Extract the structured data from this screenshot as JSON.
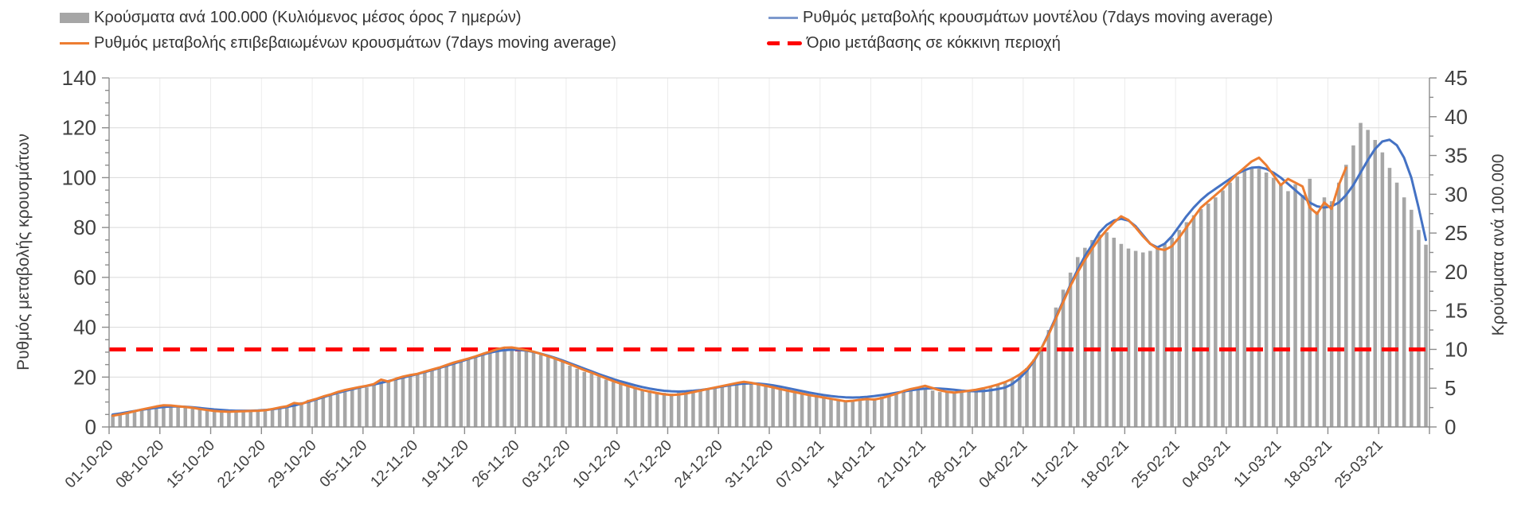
{
  "legend": {
    "bars_label": "Κρούσματα ανά 100.000 (Κυλιόμενος μέσος όρος 7 ημερών)",
    "confirmed_label": "Ρυθμός μεταβολής επιβεβαιωμένων κρουσμάτων (7days moving average)",
    "model_label": "Ρυθμός μεταβολής κρουσμάτων μοντέλου (7days moving average)",
    "threshold_label": "Όριο μετάβασης σε κόκκινη περιοχή"
  },
  "axes": {
    "left_title": "Ρυθμός μεταβολής κρουσμάτων",
    "right_title": "Κρούσματα ανά 100.000",
    "left_ticks": [
      0,
      20,
      40,
      60,
      80,
      100,
      120,
      140
    ],
    "right_ticks": [
      0,
      5,
      10,
      15,
      20,
      25,
      30,
      35,
      40,
      45
    ],
    "left_range": [
      0,
      140
    ],
    "right_range": [
      0,
      45
    ]
  },
  "colors": {
    "bars": "#a6a6a6",
    "model": "#4472c4",
    "confirmed": "#ed7d31",
    "threshold": "#fe0000",
    "grid_h": "#d9d9d9",
    "grid_v": "#ececec",
    "axis": "#8c8c8c",
    "text": "#404040"
  },
  "chart_data": {
    "type": "bar",
    "subtype": "daily bars with two 7-day moving-average lines and a horizontal threshold line",
    "start_date": "01-10-20",
    "end_date": "31-03-21",
    "grid": true,
    "legend_position": "top",
    "x_tick_labels": [
      "01-10-20",
      "08-10-20",
      "15-10-20",
      "22-10-20",
      "29-10-20",
      "05-11-20",
      "12-11-20",
      "19-11-20",
      "26-11-20",
      "03-12-20",
      "10-12-20",
      "17-12-20",
      "24-12-20",
      "31-12-20",
      "07-01-21",
      "14-01-21",
      "21-01-21",
      "28-01-21",
      "04-02-21",
      "11-02-21",
      "18-02-21",
      "25-02-21",
      "04-03-21",
      "11-03-21",
      "18-03-21",
      "25-03-21"
    ],
    "series": [
      {
        "name": "Κρούσματα ανά 100.000 (Κυλιόμενος μέσος όρος 7 ημερών)",
        "type": "bar",
        "axis": "right",
        "color": "#a6a6a6",
        "values": [
          1.6,
          1.8,
          1.9,
          2.1,
          2.3,
          2.4,
          2.6,
          2.7,
          2.7,
          2.7,
          2.7,
          2.5,
          2.3,
          2.3,
          2.2,
          2.1,
          2.0,
          2.0,
          2.0,
          2.1,
          2.1,
          2.1,
          2.3,
          2.4,
          2.6,
          2.8,
          3.2,
          3.5,
          3.5,
          3.8,
          4.0,
          4.2,
          4.5,
          4.8,
          5.0,
          5.1,
          5.4,
          5.7,
          5.9,
          6.2,
          6.4,
          6.6,
          6.8,
          7.0,
          7.3,
          7.6,
          7.8,
          8.1,
          8.4,
          8.7,
          9.0,
          9.3,
          9.5,
          9.7,
          10.0,
          10.0,
          9.9,
          9.8,
          9.6,
          9.3,
          9.2,
          8.8,
          8.4,
          7.9,
          7.5,
          7.1,
          6.9,
          6.5,
          6.1,
          5.8,
          5.6,
          5.3,
          5.0,
          4.8,
          4.7,
          4.5,
          4.4,
          4.3,
          4.4,
          4.5,
          4.7,
          4.8,
          5.0,
          5.1,
          5.3,
          5.5,
          5.6,
          5.8,
          5.7,
          5.5,
          5.4,
          5.3,
          5.1,
          4.9,
          4.7,
          4.4,
          4.2,
          4.1,
          3.9,
          3.7,
          3.5,
          3.4,
          3.4,
          3.5,
          3.6,
          3.7,
          3.9,
          4.1,
          4.3,
          4.6,
          4.8,
          5.0,
          4.9,
          4.7,
          4.5,
          4.5,
          4.4,
          4.5,
          4.6,
          4.7,
          4.9,
          5.1,
          5.4,
          5.7,
          6.1,
          6.8,
          7.6,
          8.7,
          10.3,
          12.5,
          15.4,
          17.7,
          19.9,
          21.9,
          23.1,
          24.1,
          24.8,
          25.1,
          24.4,
          23.6,
          23.0,
          22.7,
          22.5,
          22.7,
          23.0,
          23.6,
          24.4,
          25.4,
          26.4,
          27.3,
          28.1,
          28.8,
          29.6,
          30.5,
          31.5,
          32.3,
          33.0,
          33.4,
          33.3,
          32.8,
          32.1,
          31.2,
          30.4,
          31.3,
          29.9,
          32.0,
          27.8,
          29.6,
          29.1,
          31.5,
          33.8,
          36.3,
          39.2,
          38.3,
          37.0,
          35.4,
          33.4,
          31.5,
          29.6,
          28.0,
          25.4,
          23.5
        ]
      },
      {
        "name": "Ρυθμός μεταβολής κρουσμάτων μοντέλου (7days moving average)",
        "type": "line",
        "axis": "left",
        "color": "#4472c4",
        "values": [
          5.0,
          5.4,
          5.9,
          6.4,
          6.9,
          7.3,
          7.7,
          8.0,
          8.2,
          8.2,
          8.1,
          7.9,
          7.6,
          7.3,
          7.0,
          6.8,
          6.6,
          6.5,
          6.5,
          6.5,
          6.6,
          6.8,
          7.1,
          7.5,
          8.0,
          8.6,
          9.3,
          10.1,
          11.0,
          11.9,
          12.8,
          13.6,
          14.4,
          15.1,
          15.8,
          16.4,
          17.0,
          17.7,
          18.4,
          19.1,
          19.8,
          20.5,
          21.2,
          22.0,
          22.8,
          23.6,
          24.5,
          25.4,
          26.3,
          27.2,
          28.1,
          29.0,
          29.8,
          30.4,
          30.8,
          31.0,
          30.9,
          30.6,
          30.1,
          29.4,
          28.6,
          27.7,
          26.7,
          25.6,
          24.5,
          23.4,
          22.3,
          21.2,
          20.2,
          19.2,
          18.3,
          17.5,
          16.7,
          16.0,
          15.4,
          14.9,
          14.5,
          14.3,
          14.2,
          14.3,
          14.5,
          14.8,
          15.2,
          15.7,
          16.2,
          16.7,
          17.1,
          17.4,
          17.5,
          17.4,
          17.1,
          16.7,
          16.2,
          15.6,
          15.0,
          14.4,
          13.8,
          13.3,
          12.8,
          12.4,
          12.1,
          11.9,
          11.8,
          11.9,
          12.1,
          12.4,
          12.8,
          13.2,
          13.7,
          14.2,
          14.7,
          15.1,
          15.4,
          15.5,
          15.4,
          15.2,
          14.9,
          14.6,
          14.4,
          14.3,
          14.4,
          14.7,
          15.2,
          15.8,
          17.2,
          19.5,
          22.5,
          26.5,
          31.5,
          37.5,
          44.0,
          50.5,
          57.0,
          63.0,
          68.5,
          73.0,
          78.0,
          81.0,
          82.8,
          83.5,
          82.8,
          80.5,
          77.0,
          73.5,
          72.0,
          73.5,
          76.5,
          80.5,
          84.5,
          88.0,
          91.0,
          93.5,
          95.5,
          97.5,
          99.5,
          101.5,
          103.0,
          104.0,
          104.2,
          103.5,
          102.0,
          100.0,
          97.5,
          95.0,
          92.5,
          90.0,
          88.5,
          88.0,
          88.5,
          90.0,
          93.0,
          97.0,
          102.0,
          107.0,
          111.5,
          114.5,
          115.2,
          113.0,
          108.0,
          100.0,
          88.0,
          75.0
        ]
      },
      {
        "name": "Ρυθμός μεταβολής επιβεβαιωμένων κρουσμάτων (7days moving average)",
        "type": "line",
        "axis": "left",
        "color": "#ed7d31",
        "values": [
          4.5,
          5.0,
          5.6,
          6.3,
          7.0,
          7.6,
          8.2,
          8.7,
          8.6,
          8.3,
          8.0,
          7.7,
          7.2,
          6.8,
          6.4,
          6.2,
          6.1,
          6.2,
          6.3,
          6.4,
          6.5,
          6.7,
          7.2,
          7.8,
          8.3,
          9.6,
          9.2,
          10.4,
          11.2,
          12.2,
          13.0,
          14.0,
          14.8,
          15.4,
          16.0,
          16.5,
          17.2,
          19.0,
          18.2,
          19.3,
          20.2,
          20.8,
          21.3,
          22.2,
          23.0,
          23.8,
          24.8,
          25.8,
          26.6,
          27.4,
          28.3,
          29.3,
          30.2,
          31.2,
          31.8,
          31.9,
          31.4,
          30.8,
          30.2,
          29.3,
          28.4,
          27.4,
          26.3,
          25.2,
          24.0,
          22.8,
          21.8,
          20.6,
          19.5,
          18.4,
          17.4,
          16.5,
          15.6,
          14.8,
          14.2,
          13.6,
          13.1,
          12.8,
          13.0,
          13.4,
          14.0,
          14.6,
          15.2,
          15.8,
          16.4,
          17.0,
          17.6,
          18.1,
          17.7,
          17.1,
          16.5,
          15.9,
          15.2,
          14.6,
          14.0,
          13.4,
          12.8,
          12.3,
          11.8,
          11.3,
          10.8,
          10.3,
          10.5,
          10.9,
          11.2,
          11.0,
          11.6,
          12.4,
          13.3,
          14.4,
          15.2,
          15.8,
          16.5,
          15.6,
          14.7,
          14.1,
          13.8,
          14.1,
          14.5,
          14.9,
          15.5,
          16.2,
          17.0,
          18.0,
          19.3,
          21.0,
          23.3,
          26.8,
          31.5,
          37.0,
          43.5,
          50.0,
          56.5,
          62.0,
          67.0,
          71.5,
          75.5,
          79.0,
          82.0,
          84.5,
          83.0,
          80.0,
          76.5,
          73.5,
          71.5,
          71.0,
          72.5,
          76.0,
          80.0,
          84.0,
          88.0,
          90.5,
          93.0,
          95.5,
          98.5,
          101.5,
          104.0,
          106.5,
          108.0,
          105.0,
          101.0,
          97.0,
          99.5,
          98.0,
          96.5,
          88.0,
          85.5,
          90.0,
          87.5,
          97.0,
          104.0
        ]
      },
      {
        "name": "Όριο μετάβασης σε κόκκινη περιοχή",
        "type": "threshold",
        "axis": "right",
        "color": "#fe0000",
        "value": 10
      }
    ]
  }
}
